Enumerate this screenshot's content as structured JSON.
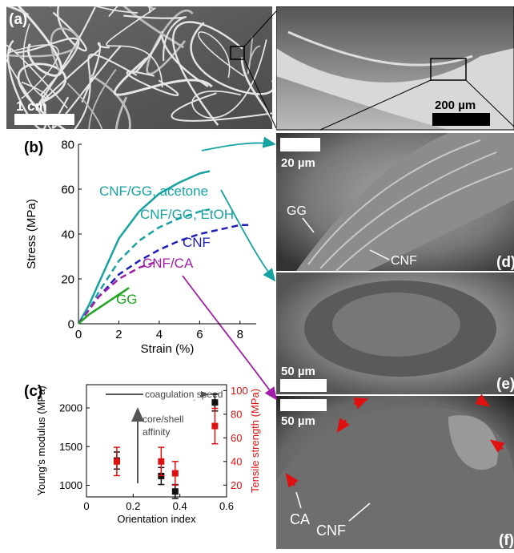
{
  "chart_data": [
    {
      "type": "line",
      "panel_label": "(b)",
      "x_label": "Strain (%)",
      "y_label": "Stress (MPa)",
      "xlim": [
        0,
        8.8
      ],
      "xticks": [
        0,
        2,
        4,
        6,
        8
      ],
      "ylim": [
        0,
        80
      ],
      "yticks": [
        0,
        20,
        40,
        60,
        80
      ],
      "series": [
        {
          "name": "CNF/GG, acetone",
          "color": "#17a2a2",
          "dash": false,
          "x": [
            0,
            0.5,
            1,
            1.5,
            2,
            3,
            4,
            5,
            6,
            6.5
          ],
          "values": [
            0,
            8,
            18,
            28,
            38,
            50,
            58,
            63,
            67,
            68
          ]
        },
        {
          "name": "CNF/GG, EtOH",
          "color": "#17a2a2",
          "dash": true,
          "x": [
            0,
            0.5,
            1,
            2,
            3,
            4,
            5,
            6,
            6.5
          ],
          "values": [
            0,
            6,
            14,
            28,
            37,
            43,
            47,
            50,
            51
          ]
        },
        {
          "name": "CNF",
          "color": "#1f1fb8",
          "dash": true,
          "x": [
            0,
            1,
            2,
            3,
            4,
            5,
            6,
            7,
            8,
            8.5
          ],
          "values": [
            0,
            12,
            22,
            28,
            33,
            37,
            40,
            42,
            44,
            44
          ]
        },
        {
          "name": "CNF/CA",
          "color": "#a21fa8",
          "dash": true,
          "x": [
            0,
            1,
            2,
            3,
            4
          ],
          "values": [
            0,
            12,
            20,
            25,
            28
          ]
        },
        {
          "name": "GG",
          "color": "#1fa51f",
          "dash": false,
          "x": [
            0,
            0.5,
            1,
            1.5,
            2,
            2.5
          ],
          "values": [
            0,
            4,
            7,
            10,
            13,
            16
          ]
        }
      ]
    },
    {
      "type": "errorbar",
      "panel_label": "(c)",
      "x_label": "Orientation index",
      "y_label": "Young’s modulus (MPa)",
      "y2_label": "Tensile strength (MPa)",
      "annotations": [
        "coagulation speed",
        "core/shell",
        "affinity"
      ],
      "xlim": [
        0,
        0.6
      ],
      "xticks": [
        0,
        0.2,
        0.4,
        0.6
      ],
      "ylim": [
        850,
        2300
      ],
      "yticks": [
        1000,
        1500,
        2000
      ],
      "y2lim": [
        10,
        105
      ],
      "y2ticks": [
        20,
        40,
        60,
        80,
        100
      ],
      "y2color": "#dd1111",
      "series": [
        {
          "color": "#111111",
          "axis": "y",
          "x": [
            0.13,
            0.32,
            0.38,
            0.55
          ],
          "values": [
            1320,
            1120,
            920,
            2070
          ],
          "errors": [
            110,
            110,
            90,
            110
          ]
        },
        {
          "color": "#dd1111",
          "axis": "y2",
          "x": [
            0.13,
            0.32,
            0.38,
            0.55
          ],
          "values": [
            40,
            40,
            30,
            70
          ],
          "errors": [
            12,
            12,
            10,
            15
          ]
        }
      ]
    }
  ],
  "panels": {
    "a": {
      "label": "(a)",
      "scale_bar": "1 cm"
    },
    "a_zoom": {
      "scale_bar": "200 µm"
    },
    "d": {
      "label": "(d)",
      "scale_bar": "20 µm",
      "annotations": [
        "GG",
        "CNF"
      ]
    },
    "e": {
      "label": "(e)",
      "scale_bar": "50 µm"
    },
    "f": {
      "label": "(f)",
      "scale_bar": "50 µm",
      "annotations": [
        "CA",
        "CNF"
      ]
    }
  }
}
